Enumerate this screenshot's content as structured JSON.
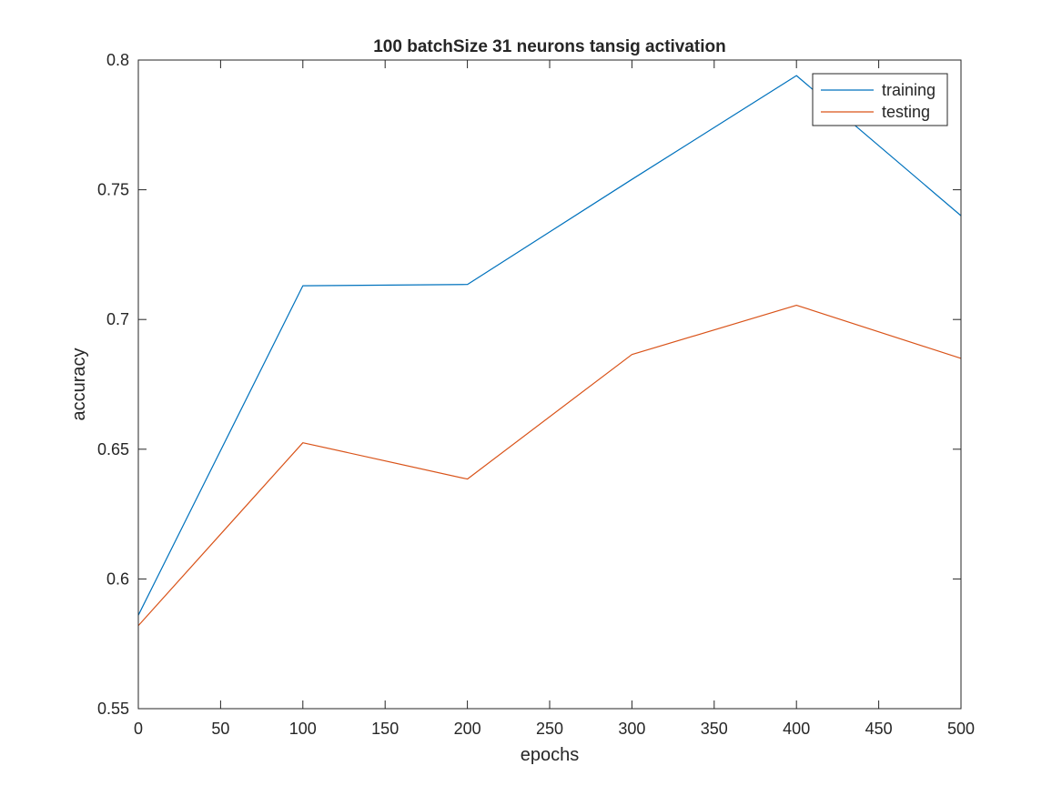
{
  "chart_data": {
    "type": "line",
    "title": "100 batchSize 31 neurons tansig activation",
    "xlabel": "epochs",
    "ylabel": "accuracy",
    "xlim": [
      0,
      500
    ],
    "ylim": [
      0.55,
      0.8
    ],
    "xticks": [
      0,
      50,
      100,
      150,
      200,
      250,
      300,
      350,
      400,
      450,
      500
    ],
    "yticks": [
      0.55,
      0.6,
      0.65,
      0.7,
      0.75,
      0.8
    ],
    "xtick_labels": [
      "0",
      "50",
      "100",
      "150",
      "200",
      "250",
      "300",
      "350",
      "400",
      "450",
      "500"
    ],
    "ytick_labels": [
      "0.55",
      "0.6",
      "0.65",
      "0.7",
      "0.75",
      "0.8"
    ],
    "grid": false,
    "legend_position": "top-right",
    "x": [
      0,
      100,
      200,
      300,
      400,
      500
    ],
    "series": [
      {
        "name": "training",
        "color": "#0072BD",
        "values": [
          0.586,
          0.713,
          0.7135,
          0.754,
          0.794,
          0.74
        ]
      },
      {
        "name": "testing",
        "color": "#D95319",
        "values": [
          0.582,
          0.6525,
          0.6385,
          0.6865,
          0.7055,
          0.685
        ]
      }
    ]
  }
}
